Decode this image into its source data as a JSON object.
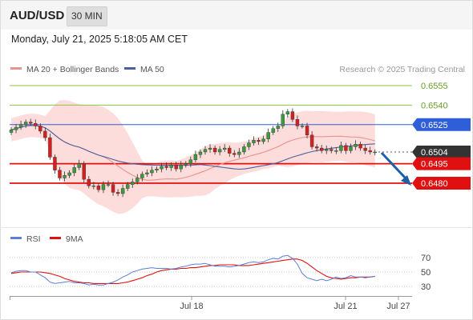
{
  "header": {
    "pair": "AUD/USD",
    "timeframe": "30 MIN"
  },
  "datetime": "Monday, July 21, 2025 5:18:05 AM CET",
  "legend": {
    "ma20_bollinger": "MA 20 + Bollinger Bands",
    "ma50": "MA 50",
    "copyright": "Research © 2025 Trading Central",
    "rsi": "RSI",
    "rsi9ma": "9MA"
  },
  "colors": {
    "bollinger_fill": "#fcd9d7",
    "ma20": "#e8938d",
    "ma50": "#4a5fa0",
    "bull": "#3a9c3a",
    "bear": "#d42020",
    "resistance": "#2f5fd8",
    "support": "#e01010",
    "green_level": "#8bc34a",
    "current": "#333333",
    "arrow": "#1f5fa8",
    "rsi_line": "#5b7fd6",
    "rsi_ma": "#e01010"
  },
  "chart_data": [
    {
      "type": "candlestick",
      "x_tick_labels": [
        "Jul 18",
        "Jul 21",
        "Jul 27"
      ],
      "ylim": [
        0.6466,
        0.6562
      ],
      "levels": [
        {
          "value": 0.6555,
          "label": "0.6555",
          "kind": "target"
        },
        {
          "value": 0.654,
          "label": "0.6540",
          "kind": "target"
        },
        {
          "value": 0.6525,
          "label": "0.6525",
          "kind": "resistance"
        },
        {
          "value": 0.6504,
          "label": "0.6504",
          "kind": "current"
        },
        {
          "value": 0.6495,
          "label": "0.6495",
          "kind": "support"
        },
        {
          "value": 0.648,
          "label": "0.6480",
          "kind": "support"
        }
      ],
      "forecast": "bearish arrow toward 0.6480",
      "closes": [
        0.6521,
        0.6523,
        0.6525,
        0.6527,
        0.6526,
        0.6524,
        0.652,
        0.6515,
        0.65,
        0.649,
        0.6484,
        0.6486,
        0.6488,
        0.6492,
        0.6495,
        0.6483,
        0.6478,
        0.6478,
        0.6475,
        0.6479,
        0.6479,
        0.6473,
        0.6472,
        0.6476,
        0.6479,
        0.6481,
        0.6484,
        0.6487,
        0.6488,
        0.649,
        0.6491,
        0.6493,
        0.6492,
        0.6494,
        0.6491,
        0.6494,
        0.6495,
        0.6498,
        0.6502,
        0.6504,
        0.6506,
        0.6507,
        0.6504,
        0.6506,
        0.6507,
        0.6503,
        0.6502,
        0.6504,
        0.6508,
        0.6511,
        0.6513,
        0.6512,
        0.6514,
        0.6519,
        0.6522,
        0.6524,
        0.6533,
        0.6535,
        0.6529,
        0.6524,
        0.6524,
        0.6517,
        0.6508,
        0.6507,
        0.6505,
        0.6506,
        0.6505,
        0.6505,
        0.6509,
        0.6505,
        0.6508,
        0.651,
        0.6507,
        0.6505,
        0.6504,
        0.6504
      ]
    },
    {
      "type": "line",
      "title": "RSI",
      "y_tick_labels": [
        "70",
        "50",
        "30"
      ],
      "ylim": [
        20,
        80
      ],
      "series": [
        {
          "name": "RSI",
          "values": [
            49,
            51,
            52,
            52,
            50,
            50,
            46,
            42,
            36,
            34,
            35,
            36,
            37,
            35,
            35,
            34,
            32,
            33,
            32,
            32,
            34,
            36,
            39,
            43,
            46,
            50,
            52,
            54,
            55,
            56,
            55,
            55,
            55,
            54,
            55,
            57,
            58,
            60,
            61,
            61,
            62,
            60,
            58,
            58,
            58,
            57,
            58,
            59,
            61,
            63,
            64,
            63,
            64,
            67,
            69,
            68,
            72,
            73,
            69,
            61,
            48,
            42,
            40,
            38,
            40,
            38,
            40,
            43,
            41,
            42,
            45,
            43,
            43,
            42,
            43,
            44
          ]
        },
        {
          "name": "9MA",
          "values": [
            48,
            49,
            50,
            50,
            50,
            50,
            50,
            49,
            48,
            46,
            44,
            41,
            39,
            37,
            36,
            35,
            35,
            34,
            34,
            34,
            34,
            34,
            34,
            35,
            36,
            38,
            40,
            42,
            45,
            47,
            50,
            52,
            53,
            54,
            54,
            55,
            55,
            56,
            56,
            57,
            58,
            59,
            59,
            60,
            60,
            60,
            60,
            59,
            59,
            59,
            60,
            61,
            62,
            63,
            64,
            65,
            66,
            67,
            68,
            68,
            66,
            62,
            57,
            52,
            48,
            44,
            42,
            41,
            40,
            41,
            42,
            42,
            43,
            43,
            43,
            44
          ]
        }
      ]
    }
  ]
}
